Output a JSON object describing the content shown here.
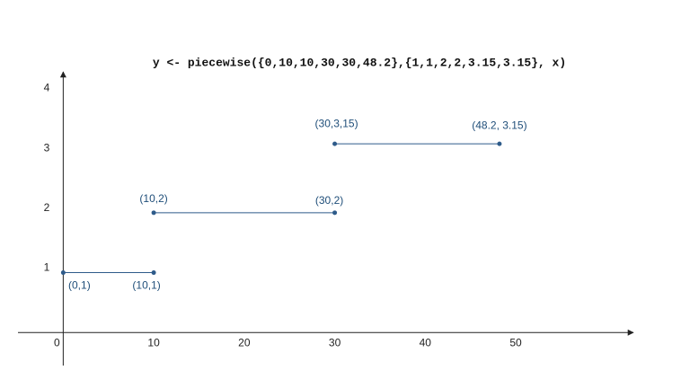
{
  "chart_data": {
    "type": "line",
    "title": "y <- piecewise({0,10,10,30,30,48.2},{1,1,2,2,3.15,3.15}, x)",
    "x": [
      0,
      10,
      null,
      10,
      30,
      null,
      30,
      48.2
    ],
    "series": [
      {
        "name": null,
        "color": "#2e5b8a",
        "values": [
          1,
          1,
          null,
          2,
          2,
          null,
          3.15,
          3.15
        ],
        "value_labels": [
          "(0,1)",
          "(10,1)",
          null,
          "(10,2)",
          "(30,2)",
          null,
          "(30,3,15)",
          "(48.2, 3.15)"
        ]
      }
    ],
    "xlim": [
      -5,
      63
    ],
    "ylim": [
      -0.55,
      4.35
    ],
    "xticks": [
      0,
      10,
      20,
      30,
      40,
      50
    ],
    "yticks": [
      1,
      2,
      3,
      4
    ],
    "grid": false
  }
}
